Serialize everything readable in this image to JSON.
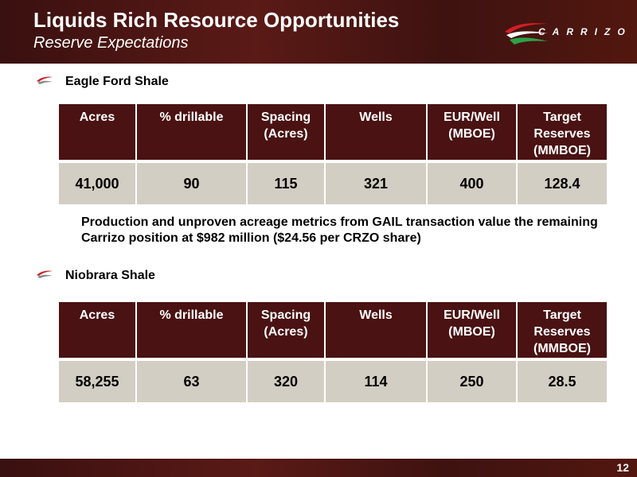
{
  "header": {
    "title": "Liquids Rich Resource Opportunities",
    "subtitle": "Reserve Expectations",
    "logo": "CARRIZO"
  },
  "sections": [
    {
      "heading": "Eagle Ford Shale",
      "table": {
        "columns": [
          "Acres",
          "% drillable",
          "Spacing (Acres)",
          "Wells",
          "EUR/Well (MBOE)",
          "Target Reserves (MMBOE)"
        ],
        "row": [
          "41,000",
          "90",
          "115",
          "321",
          "400",
          "128.4"
        ]
      },
      "note": "Production and unproven acreage metrics from GAIL transaction value the remaining Carrizo position at $982 million ($24.56 per CRZO share)"
    },
    {
      "heading": "Niobrara Shale",
      "table": {
        "columns": [
          "Acres",
          "% drillable",
          "Spacing (Acres)",
          "Wells",
          "EUR/Well (MBOE)",
          "Target Reserves (MMBOE)"
        ],
        "row": [
          "58,255",
          "63",
          "320",
          "114",
          "250",
          "28.5"
        ]
      }
    }
  ],
  "footer": {
    "page_number": "12"
  }
}
